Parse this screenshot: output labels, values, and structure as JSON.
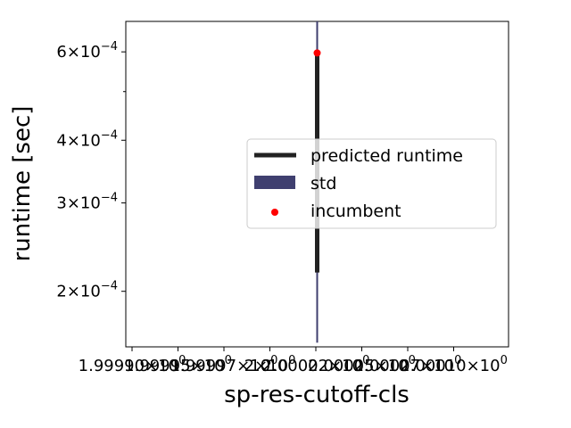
{
  "chart_data": {
    "type": "line",
    "title": "",
    "xlabel": "sp-res-cutoff-cls",
    "ylabel": "runtime [sec]",
    "y_scale": "log",
    "ylim": [
      0.000155,
      0.00069
    ],
    "xlim": [
      1.99995,
      2.00005
    ],
    "x_tick_labels": [
      "1.99990×10^0",
      "1.99995×10^0",
      "1.99997×10^0",
      "2×10^0",
      "2.00002×10^0",
      "2.00005×10^0",
      "2.00007×10^0",
      "2.00010×10^0"
    ],
    "y_ticks": [
      {
        "value": 0.0002,
        "mantissa": "2",
        "exponent": "−4"
      },
      {
        "value": 0.0003,
        "mantissa": "3",
        "exponent": "−4"
      },
      {
        "value": 0.0004,
        "mantissa": "4",
        "exponent": "−4"
      },
      {
        "value": 0.0006,
        "mantissa": "6",
        "exponent": "−4"
      }
    ],
    "y_minor_ticks": [
      0.0005
    ],
    "series": [
      {
        "name": "predicted runtime",
        "kind": "line",
        "color": "#222222",
        "x": [
          2,
          2
        ],
        "y": [
          0.000218,
          0.0006
        ]
      },
      {
        "name": "std",
        "kind": "band",
        "color": "#3f3f6f",
        "x": [
          2,
          2
        ],
        "y": [
          0.000158,
          0.00069
        ]
      },
      {
        "name": "incumbent",
        "kind": "point",
        "color": "#ff0000",
        "x": [
          2
        ],
        "y": [
          0.000597
        ]
      }
    ],
    "legend": {
      "placement": "center-right",
      "entries": [
        "predicted runtime",
        "std",
        "incumbent"
      ]
    },
    "grid": false
  }
}
